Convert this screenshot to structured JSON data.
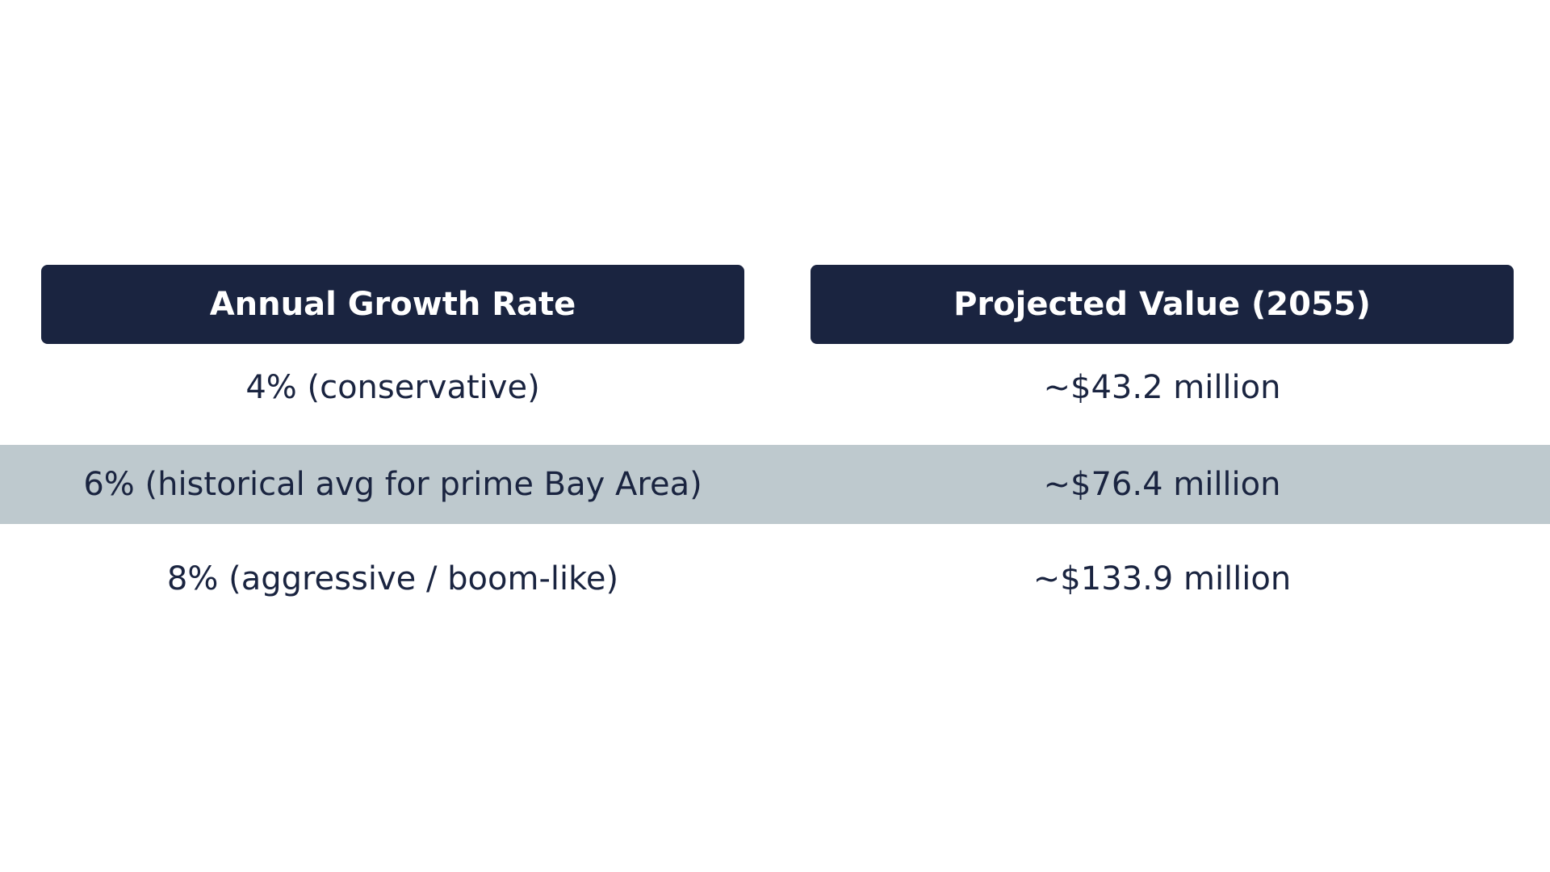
{
  "table": {
    "headers": [
      "Annual Growth Rate",
      "Projected Value (2055)"
    ],
    "rows": [
      [
        "4% (conservative)",
        "~$43.2 million"
      ],
      [
        "6% (historical avg for prime Bay Area)",
        "~$76.4 million"
      ],
      [
        "8% (aggressive / boom-like)",
        "~$133.9 million"
      ]
    ]
  }
}
